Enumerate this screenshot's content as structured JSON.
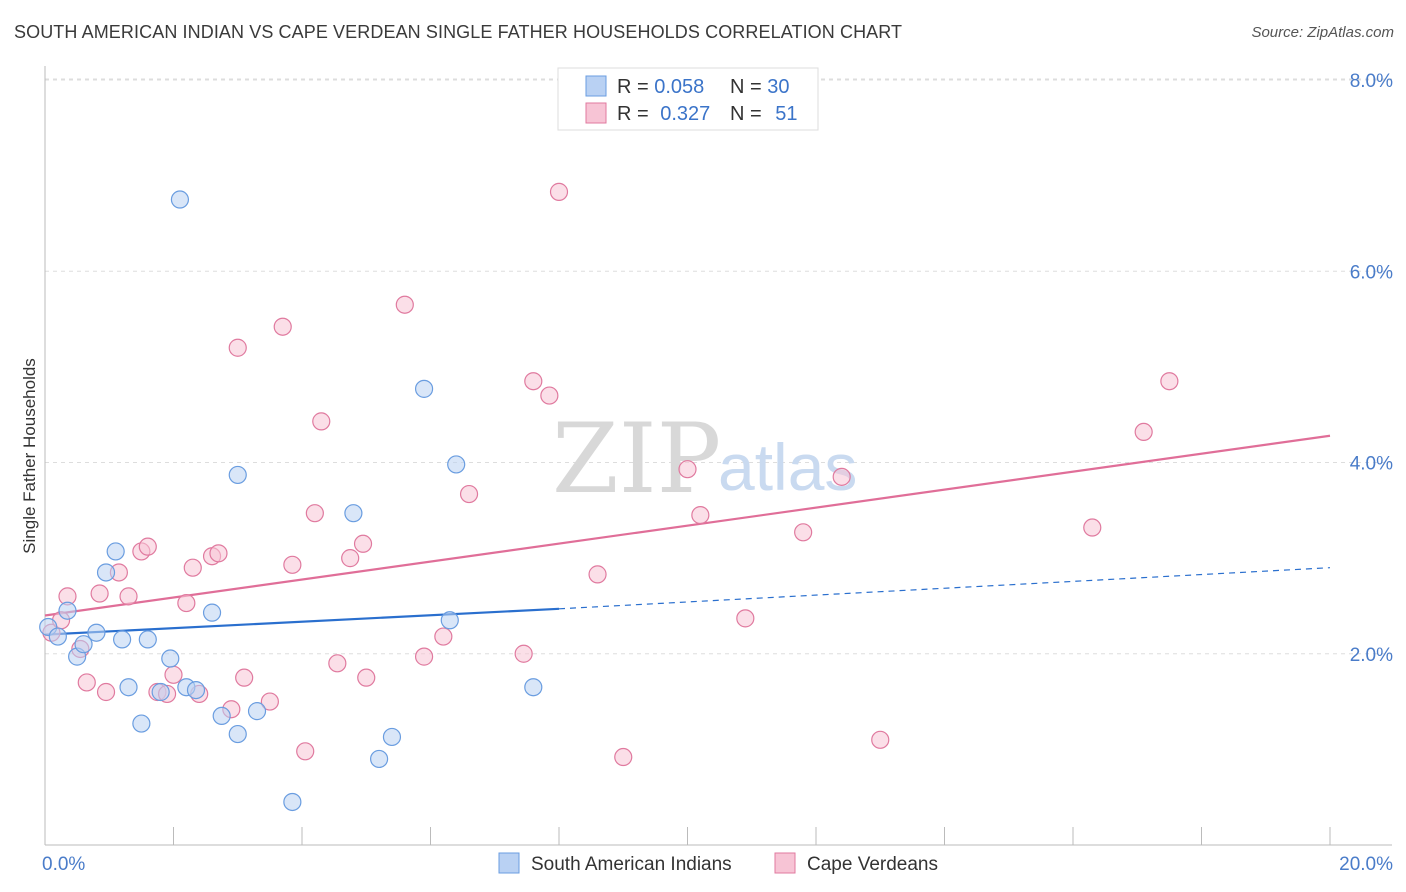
{
  "title": "SOUTH AMERICAN INDIAN VS CAPE VERDEAN SINGLE FATHER HOUSEHOLDS CORRELATION CHART",
  "source": "Source: ZipAtlas.com",
  "watermark": {
    "zip": "ZIP",
    "atlas": "atlas"
  },
  "chart_data": {
    "type": "scatter",
    "ylabel": "Single Father Households",
    "xlim": [
      0,
      20
    ],
    "ylim": [
      0,
      8.3
    ],
    "x_tick_labels": [
      {
        "value": 0,
        "label": "0.0%"
      },
      {
        "value": 20,
        "label": "20.0%"
      }
    ],
    "y_tick_labels": [
      {
        "value": 2,
        "label": "2.0%"
      },
      {
        "value": 4,
        "label": "4.0%"
      },
      {
        "value": 6,
        "label": "6.0%"
      },
      {
        "value": 8,
        "label": "8.0%"
      }
    ],
    "legend": {
      "placement": "top-center",
      "rows": [
        {
          "r_label": "R = ",
          "r_value": "0.058",
          "n_label": "N = ",
          "n_value": "30"
        },
        {
          "r_label": "R = ",
          "r_value": "0.327",
          "n_label": "N = ",
          "n_value": "51"
        }
      ]
    },
    "series": [
      {
        "name": "South American Indians",
        "color": "#6a9de0",
        "fill": "#b9d1f3",
        "trend": {
          "x0": 0,
          "y0": 2.2,
          "x1": 8,
          "y1": 2.47,
          "dash_to_x": 20,
          "dash_to_y": 2.9
        },
        "points": [
          [
            0.05,
            2.28
          ],
          [
            0.2,
            2.18
          ],
          [
            0.35,
            2.45
          ],
          [
            0.5,
            1.97
          ],
          [
            0.6,
            2.1
          ],
          [
            0.8,
            2.22
          ],
          [
            0.95,
            2.85
          ],
          [
            1.1,
            3.07
          ],
          [
            1.2,
            2.15
          ],
          [
            1.3,
            1.65
          ],
          [
            1.5,
            1.27
          ],
          [
            1.6,
            2.15
          ],
          [
            1.8,
            1.6
          ],
          [
            1.95,
            1.95
          ],
          [
            2.1,
            6.75
          ],
          [
            2.2,
            1.65
          ],
          [
            2.35,
            1.62
          ],
          [
            2.6,
            2.43
          ],
          [
            2.75,
            1.35
          ],
          [
            3.0,
            3.87
          ],
          [
            3.0,
            1.16
          ],
          [
            3.3,
            1.4
          ],
          [
            3.85,
            0.45
          ],
          [
            4.8,
            3.47
          ],
          [
            5.2,
            0.9
          ],
          [
            5.4,
            1.13
          ],
          [
            5.9,
            4.77
          ],
          [
            6.3,
            2.35
          ],
          [
            6.4,
            3.98
          ],
          [
            7.6,
            1.65
          ]
        ]
      },
      {
        "name": "Cape Verdeans",
        "color": "#e07a9f",
        "fill": "#f7c4d5",
        "trend": {
          "x0": 0,
          "y0": 2.4,
          "x1": 20,
          "y1": 4.28
        },
        "points": [
          [
            0.1,
            2.22
          ],
          [
            0.25,
            2.35
          ],
          [
            0.35,
            2.6
          ],
          [
            0.55,
            2.05
          ],
          [
            0.65,
            1.7
          ],
          [
            0.85,
            2.63
          ],
          [
            0.95,
            1.6
          ],
          [
            1.15,
            2.85
          ],
          [
            1.3,
            2.6
          ],
          [
            1.5,
            3.07
          ],
          [
            1.6,
            3.12
          ],
          [
            1.75,
            1.6
          ],
          [
            1.9,
            1.58
          ],
          [
            2.0,
            1.78
          ],
          [
            2.2,
            2.53
          ],
          [
            2.3,
            2.9
          ],
          [
            2.4,
            1.58
          ],
          [
            2.6,
            3.02
          ],
          [
            2.7,
            3.05
          ],
          [
            2.9,
            1.42
          ],
          [
            3.0,
            5.2
          ],
          [
            3.1,
            1.75
          ],
          [
            3.5,
            1.5
          ],
          [
            3.7,
            5.42
          ],
          [
            3.85,
            2.93
          ],
          [
            4.05,
            0.98
          ],
          [
            4.2,
            3.47
          ],
          [
            4.3,
            4.43
          ],
          [
            4.55,
            1.9
          ],
          [
            4.75,
            3.0
          ],
          [
            4.95,
            3.15
          ],
          [
            5.0,
            1.75
          ],
          [
            5.6,
            5.65
          ],
          [
            5.9,
            1.97
          ],
          [
            6.2,
            2.18
          ],
          [
            6.6,
            3.67
          ],
          [
            7.45,
            2.0
          ],
          [
            7.6,
            4.85
          ],
          [
            7.85,
            4.7
          ],
          [
            8.0,
            6.83
          ],
          [
            8.6,
            2.83
          ],
          [
            9.0,
            0.92
          ],
          [
            10.0,
            3.93
          ],
          [
            10.2,
            3.45
          ],
          [
            10.9,
            2.37
          ],
          [
            11.8,
            3.27
          ],
          [
            12.4,
            3.85
          ],
          [
            13.0,
            1.1
          ],
          [
            16.3,
            3.32
          ],
          [
            17.1,
            4.32
          ],
          [
            17.5,
            4.85
          ]
        ]
      }
    ]
  }
}
